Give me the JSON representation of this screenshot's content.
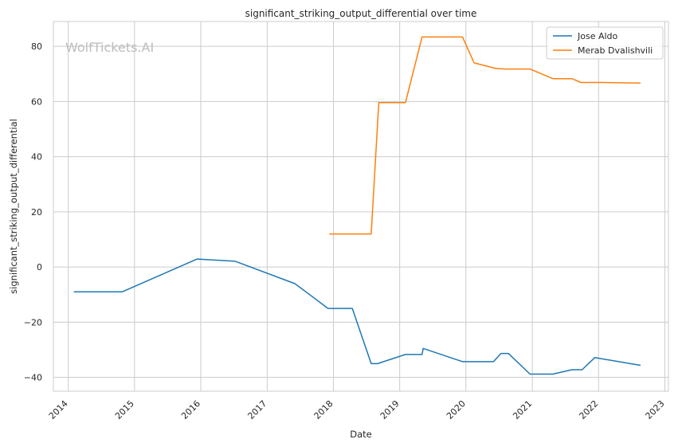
{
  "chart_data": {
    "type": "line",
    "title": "significant_striking_output_differential over time",
    "xlabel": "Date",
    "ylabel": "significant_striking_output_differential",
    "watermark": "WolfTickets.AI",
    "x_ticks": [
      "2014",
      "2015",
      "2016",
      "2017",
      "2018",
      "2019",
      "2020",
      "2021",
      "2022",
      "2023"
    ],
    "y_ticks": [
      -40,
      -20,
      0,
      20,
      40,
      60,
      80
    ],
    "xlim": [
      "2013-10-11",
      "2023-01-21"
    ],
    "ylim": [
      -45,
      89
    ],
    "grid": true,
    "legend_position": "top-right",
    "colors": {
      "Jose Aldo": "#1f77b4",
      "Merab Dvalishvili": "#ff7f0e"
    },
    "series": [
      {
        "name": "Jose Aldo",
        "color": "#1f77b4",
        "points": [
          [
            "2014-02-01",
            -9
          ],
          [
            "2014-10-25",
            -9
          ],
          [
            "2015-12-12",
            2.9
          ],
          [
            "2016-07-09",
            2.1
          ],
          [
            "2017-06-03",
            -6
          ],
          [
            "2017-12-02",
            -15
          ],
          [
            "2018-04-15",
            -15
          ],
          [
            "2018-07-28",
            -35
          ],
          [
            "2018-09-01",
            -35
          ],
          [
            "2019-02-02",
            -31.7
          ],
          [
            "2019-05-04",
            -31.7
          ],
          [
            "2019-05-11",
            -29.5
          ],
          [
            "2019-12-14",
            -34.3
          ],
          [
            "2020-06-01",
            -34.3
          ],
          [
            "2020-07-12",
            -31.3
          ],
          [
            "2020-08-22",
            -31.3
          ],
          [
            "2020-12-19",
            -38.8
          ],
          [
            "2021-04-24",
            -38.8
          ],
          [
            "2021-08-07",
            -37.2
          ],
          [
            "2021-10-02",
            -37.2
          ],
          [
            "2021-12-11",
            -32.8
          ],
          [
            "2022-08-20",
            -35.6
          ]
        ]
      },
      {
        "name": "Merab Dvalishvili",
        "color": "#ff7f0e",
        "points": [
          [
            "2017-12-09",
            12
          ],
          [
            "2018-07-28",
            12
          ],
          [
            "2018-09-08",
            59.6
          ],
          [
            "2019-02-02",
            59.6
          ],
          [
            "2019-05-04",
            83.4
          ],
          [
            "2019-12-07",
            83.4
          ],
          [
            "2019-12-13",
            83.4
          ],
          [
            "2020-02-15",
            74
          ],
          [
            "2020-06-13",
            72
          ],
          [
            "2020-08-01",
            71.8
          ],
          [
            "2020-12-19",
            71.8
          ],
          [
            "2021-04-24",
            68.3
          ],
          [
            "2021-08-07",
            68.3
          ],
          [
            "2021-09-25",
            66.9
          ],
          [
            "2022-01-15",
            66.9
          ],
          [
            "2022-08-20",
            66.7
          ]
        ]
      }
    ]
  }
}
